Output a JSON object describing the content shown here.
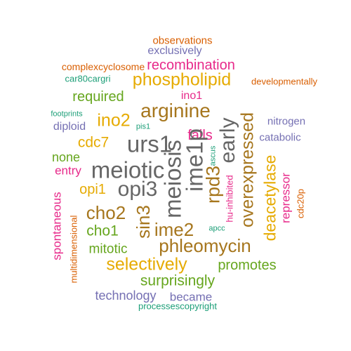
{
  "colors": {
    "background": "#ffffff",
    "palette": [
      "#1b9e77",
      "#d95f02",
      "#7570b3",
      "#e7298a",
      "#66a61e",
      "#e6ab02",
      "#a6761d",
      "#666666"
    ]
  },
  "words": [
    {
      "text": "observations",
      "color": "#d95f02"
    },
    {
      "text": "exclusively",
      "color": "#7570b3"
    },
    {
      "text": "complexcyclosome",
      "color": "#d95f02"
    },
    {
      "text": "recombination",
      "color": "#e7298a"
    },
    {
      "text": "car80cargri",
      "color": "#1b9e77"
    },
    {
      "text": "phospholipid",
      "color": "#e6ab02"
    },
    {
      "text": "developmentally",
      "color": "#d95f02"
    },
    {
      "text": "required",
      "color": "#66a61e"
    },
    {
      "text": "ino1",
      "color": "#e7298a"
    },
    {
      "text": "arginine",
      "color": "#a6761d"
    },
    {
      "text": "footprints",
      "color": "#1b9e77"
    },
    {
      "text": "ino2",
      "color": "#e6ab02"
    },
    {
      "text": "diploid",
      "color": "#7570b3"
    },
    {
      "text": "pis1",
      "color": "#1b9e77"
    },
    {
      "text": "nitrogen",
      "color": "#7570b3"
    },
    {
      "text": "fails",
      "color": "#e7298a"
    },
    {
      "text": "catabolic",
      "color": "#7570b3"
    },
    {
      "text": "urs1",
      "color": "#666666"
    },
    {
      "text": "cdc7",
      "color": "#e6ab02"
    },
    {
      "text": "none",
      "color": "#66a61e"
    },
    {
      "text": "entry",
      "color": "#e7298a"
    },
    {
      "text": "meiotic",
      "color": "#666666"
    },
    {
      "text": "opi1",
      "color": "#e6ab02"
    },
    {
      "text": "opi3",
      "color": "#666666"
    },
    {
      "text": "cho2",
      "color": "#a6761d"
    },
    {
      "text": "cho1",
      "color": "#66a61e"
    },
    {
      "text": "ime2",
      "color": "#a6761d"
    },
    {
      "text": "apcc",
      "color": "#1b9e77"
    },
    {
      "text": "mitotic",
      "color": "#66a61e"
    },
    {
      "text": "phleomycin",
      "color": "#a6761d"
    },
    {
      "text": "selectively",
      "color": "#e6ab02"
    },
    {
      "text": "promotes",
      "color": "#66a61e"
    },
    {
      "text": "surprisingly",
      "color": "#66a61e"
    },
    {
      "text": "technology",
      "color": "#7570b3"
    },
    {
      "text": "became",
      "color": "#7570b3"
    },
    {
      "text": "processescopyright",
      "color": "#1b9e77"
    },
    {
      "text": "meiosis",
      "color": "#666666"
    },
    {
      "text": "ime1p",
      "color": "#666666"
    },
    {
      "text": "early",
      "color": "#666666"
    },
    {
      "text": "rpd3",
      "color": "#a6761d"
    },
    {
      "text": "overexpressed",
      "color": "#a6761d"
    },
    {
      "text": "sin3",
      "color": "#a6761d"
    },
    {
      "text": "ascus",
      "color": "#1b9e77"
    },
    {
      "text": "hu-inhibited",
      "color": "#e7298a"
    },
    {
      "text": "deacetylase",
      "color": "#e6ab02"
    },
    {
      "text": "repressor",
      "color": "#e7298a"
    },
    {
      "text": "cdc20p",
      "color": "#d95f02"
    },
    {
      "text": "spontaneous",
      "color": "#e7298a"
    },
    {
      "text": "multidimensional",
      "color": "#d95f02"
    }
  ]
}
